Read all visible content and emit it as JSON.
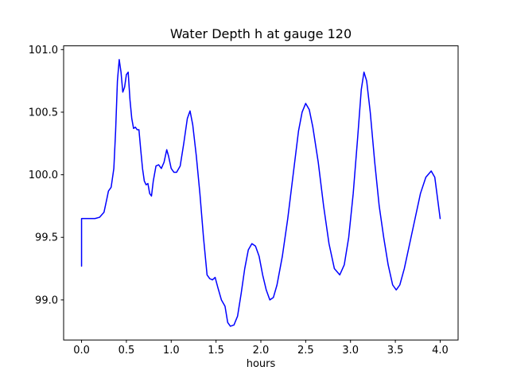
{
  "chart_data": {
    "type": "line",
    "title": "Water Depth h at gauge 120",
    "xlabel": "hours",
    "ylabel": "",
    "line_color": "#0000ff",
    "axis_color": "#000000",
    "xlim": [
      -0.2,
      4.2
    ],
    "ylim": [
      98.68,
      101.03
    ],
    "xticks": [
      0.0,
      0.5,
      1.0,
      1.5,
      2.0,
      2.5,
      3.0,
      3.5,
      4.0
    ],
    "xtick_labels": [
      "0.0",
      "0.5",
      "1.0",
      "1.5",
      "2.0",
      "2.5",
      "3.0",
      "3.5",
      "4.0"
    ],
    "yticks": [
      99.0,
      99.5,
      100.0,
      100.5,
      101.0
    ],
    "ytick_labels": [
      "99.0",
      "99.5",
      "100.0",
      "100.5",
      "101.0"
    ],
    "grid": false,
    "legend": null,
    "points": [
      [
        0.0,
        99.27
      ],
      [
        0.0,
        99.65
      ],
      [
        0.05,
        99.65
      ],
      [
        0.1,
        99.65
      ],
      [
        0.15,
        99.65
      ],
      [
        0.2,
        99.66
      ],
      [
        0.25,
        99.7
      ],
      [
        0.28,
        99.8
      ],
      [
        0.3,
        99.87
      ],
      [
        0.33,
        99.9
      ],
      [
        0.36,
        100.05
      ],
      [
        0.38,
        100.35
      ],
      [
        0.4,
        100.75
      ],
      [
        0.42,
        100.92
      ],
      [
        0.44,
        100.82
      ],
      [
        0.46,
        100.66
      ],
      [
        0.48,
        100.7
      ],
      [
        0.5,
        100.8
      ],
      [
        0.52,
        100.82
      ],
      [
        0.54,
        100.6
      ],
      [
        0.56,
        100.45
      ],
      [
        0.58,
        100.37
      ],
      [
        0.6,
        100.38
      ],
      [
        0.62,
        100.36
      ],
      [
        0.64,
        100.36
      ],
      [
        0.66,
        100.2
      ],
      [
        0.68,
        100.05
      ],
      [
        0.7,
        99.95
      ],
      [
        0.72,
        99.92
      ],
      [
        0.74,
        99.93
      ],
      [
        0.76,
        99.85
      ],
      [
        0.78,
        99.83
      ],
      [
        0.8,
        99.95
      ],
      [
        0.83,
        100.07
      ],
      [
        0.86,
        100.08
      ],
      [
        0.89,
        100.05
      ],
      [
        0.92,
        100.1
      ],
      [
        0.95,
        100.2
      ],
      [
        0.97,
        100.15
      ],
      [
        1.0,
        100.05
      ],
      [
        1.03,
        100.02
      ],
      [
        1.06,
        100.02
      ],
      [
        1.1,
        100.07
      ],
      [
        1.14,
        100.25
      ],
      [
        1.18,
        100.45
      ],
      [
        1.21,
        100.51
      ],
      [
        1.24,
        100.4
      ],
      [
        1.28,
        100.15
      ],
      [
        1.32,
        99.85
      ],
      [
        1.36,
        99.5
      ],
      [
        1.4,
        99.2
      ],
      [
        1.43,
        99.17
      ],
      [
        1.46,
        99.16
      ],
      [
        1.49,
        99.18
      ],
      [
        1.52,
        99.1
      ],
      [
        1.56,
        99.0
      ],
      [
        1.6,
        98.95
      ],
      [
        1.63,
        98.82
      ],
      [
        1.66,
        98.79
      ],
      [
        1.7,
        98.8
      ],
      [
        1.74,
        98.87
      ],
      [
        1.78,
        99.05
      ],
      [
        1.82,
        99.25
      ],
      [
        1.86,
        99.4
      ],
      [
        1.9,
        99.45
      ],
      [
        1.94,
        99.43
      ],
      [
        1.98,
        99.35
      ],
      [
        2.02,
        99.2
      ],
      [
        2.06,
        99.08
      ],
      [
        2.1,
        99.0
      ],
      [
        2.14,
        99.02
      ],
      [
        2.18,
        99.12
      ],
      [
        2.24,
        99.35
      ],
      [
        2.3,
        99.65
      ],
      [
        2.36,
        100.0
      ],
      [
        2.42,
        100.35
      ],
      [
        2.46,
        100.5
      ],
      [
        2.5,
        100.57
      ],
      [
        2.54,
        100.52
      ],
      [
        2.58,
        100.38
      ],
      [
        2.64,
        100.1
      ],
      [
        2.7,
        99.75
      ],
      [
        2.76,
        99.45
      ],
      [
        2.82,
        99.25
      ],
      [
        2.88,
        99.2
      ],
      [
        2.93,
        99.28
      ],
      [
        2.98,
        99.5
      ],
      [
        3.03,
        99.85
      ],
      [
        3.08,
        100.3
      ],
      [
        3.12,
        100.68
      ],
      [
        3.15,
        100.82
      ],
      [
        3.18,
        100.75
      ],
      [
        3.22,
        100.5
      ],
      [
        3.27,
        100.1
      ],
      [
        3.32,
        99.75
      ],
      [
        3.37,
        99.5
      ],
      [
        3.42,
        99.28
      ],
      [
        3.47,
        99.12
      ],
      [
        3.51,
        99.08
      ],
      [
        3.55,
        99.12
      ],
      [
        3.6,
        99.25
      ],
      [
        3.66,
        99.45
      ],
      [
        3.72,
        99.65
      ],
      [
        3.78,
        99.85
      ],
      [
        3.84,
        99.98
      ],
      [
        3.9,
        100.03
      ],
      [
        3.94,
        99.98
      ],
      [
        4.0,
        99.65
      ]
    ]
  }
}
